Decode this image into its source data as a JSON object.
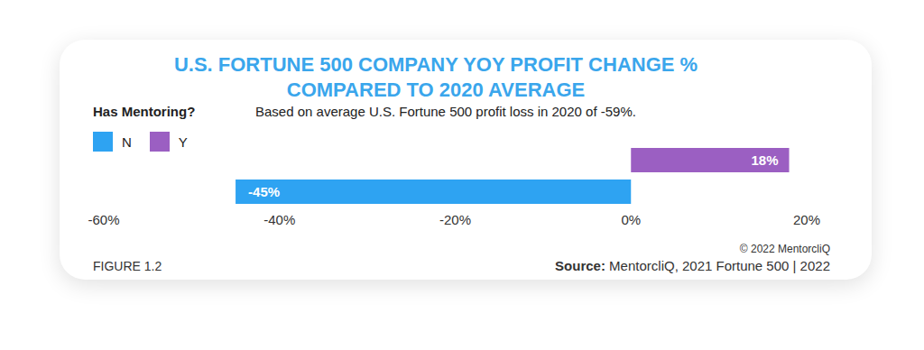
{
  "chart_data": {
    "type": "bar",
    "orientation": "horizontal",
    "title": "U.S. FORTUNE 500 COMPANY YOY PROFIT CHANGE %\nCOMPARED TO 2020 AVERAGE",
    "subtitle": "Based on average U.S. Fortune 500 profit loss in 2020 of -59%.",
    "legend_title": "Has Mentoring?",
    "legend": "top-left",
    "categories": [
      "N",
      "Y"
    ],
    "values": [
      -45,
      18
    ],
    "value_labels": [
      "-45%",
      "18%"
    ],
    "colors": [
      "#2ea3f2",
      "#9b5fc2"
    ],
    "data_labels": true,
    "xlim": [
      -60,
      20
    ],
    "xticks": [
      {
        "value": -60,
        "label": "-60%"
      },
      {
        "value": -40,
        "label": "-40%"
      },
      {
        "value": -20,
        "label": "-20%"
      },
      {
        "value": 0,
        "label": "0%"
      },
      {
        "value": 20,
        "label": "20%"
      }
    ],
    "tick_labels": "x",
    "grid": false,
    "copyright": "© 2022 MentorcliQ",
    "figure_label": "FIGURE 1.2",
    "source_label": "Source:",
    "source": "MentorcliQ, 2021 Fortune 500 | 2022"
  }
}
